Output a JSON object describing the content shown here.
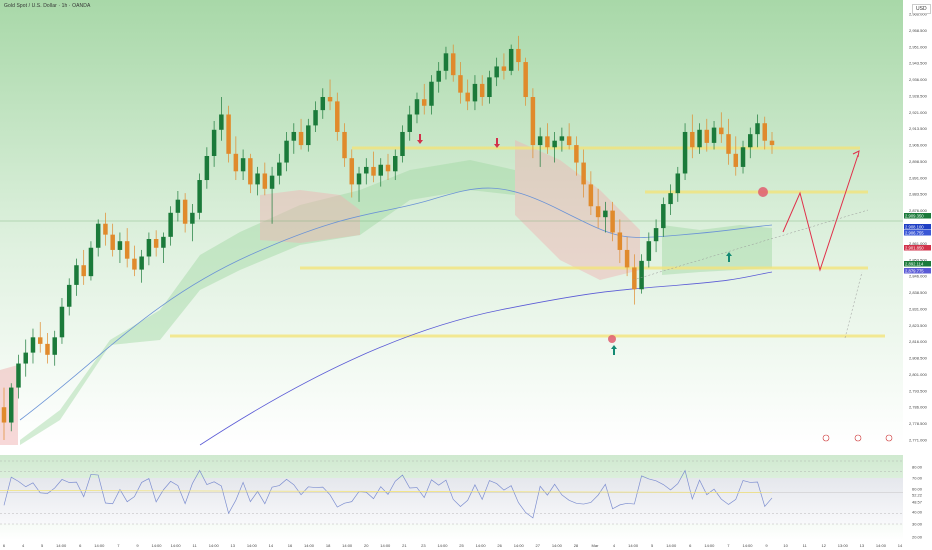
{
  "header": {
    "title": "Gold Spot / U.S. Dollar · 1h · OANDA",
    "currency": "USD"
  },
  "colors": {
    "bull": "#1b7a3a",
    "bear": "#e08a2c",
    "ma_fast": "#6b93d6",
    "ma_slow": "#5b5bd6",
    "level": "#f3e37a",
    "cloud_bull": "#9fd7a2",
    "cloud_bear": "#f0b1b1",
    "arrow_down": "#d1324a",
    "arrow_up": "#148a73",
    "projection": "#e0304a"
  },
  "price_axis": {
    "labels": [
      "2,966.000",
      "2,958.500",
      "2,951.000",
      "2,943.500",
      "2,936.000",
      "2,928.500",
      "2,921.000",
      "2,913.500",
      "2,906.000",
      "2,898.500",
      "2,891.000",
      "2,883.500",
      "2,876.000",
      "2,868.500",
      "2,861.000",
      "2,853.500",
      "2,846.000",
      "2,838.500",
      "2,831.000",
      "2,823.500",
      "2,816.000",
      "2,808.500",
      "2,801.000",
      "2,793.500",
      "2,786.000",
      "2,778.500",
      "2,771.000"
    ],
    "tags": [
      {
        "text": "2,909.350",
        "color": "#1b7a3a"
      },
      {
        "text": "2,908.100",
        "color": "#1f3fc4"
      },
      {
        "text": "2,906.755",
        "color": "#3a57d6"
      },
      {
        "text": "2,901.850",
        "color": "#d1324a"
      },
      {
        "text": "2,892.114",
        "color": "#1b7a3a"
      },
      {
        "text": "2,879.775",
        "color": "#5b5bd6"
      }
    ]
  },
  "time_axis": {
    "labels": [
      "6",
      "4",
      "5",
      "14:00",
      "6",
      "14:00",
      "7",
      "9",
      "14:00",
      "14:00",
      "11",
      "14:00",
      "13",
      "14:00",
      "14",
      "16",
      "14:00",
      "18",
      "14:00",
      "20",
      "14:00",
      "21",
      "23",
      "14:00",
      "25",
      "14:00",
      "26",
      "14:00",
      "27",
      "14:00",
      "28",
      "Mar",
      "4",
      "14:00",
      "5",
      "14:00",
      "6",
      "14:00",
      "7",
      "14:00",
      "9",
      "10",
      "11",
      "12",
      "13:00",
      "13",
      "14:00",
      "14"
    ]
  },
  "rsi": {
    "labels": [
      "80.00",
      "70.00",
      "60.00",
      "52.22",
      "48.57",
      "40.00",
      "30.00",
      "20.00"
    ]
  },
  "chart_data": {
    "type": "candlestick",
    "title": "Gold Spot / U.S. Dollar · 1h · OANDA",
    "ylim": [
      2771,
      2966
    ],
    "series": [
      {
        "values": [
          {
            "o": 2786,
            "h": 2795,
            "l": 2771,
            "c": 2779
          },
          {
            "o": 2779,
            "h": 2797,
            "l": 2775,
            "c": 2795
          },
          {
            "o": 2795,
            "h": 2810,
            "l": 2790,
            "c": 2806
          },
          {
            "o": 2806,
            "h": 2817,
            "l": 2800,
            "c": 2811
          },
          {
            "o": 2811,
            "h": 2822,
            "l": 2806,
            "c": 2818
          },
          {
            "o": 2818,
            "h": 2825,
            "l": 2811,
            "c": 2815
          },
          {
            "o": 2815,
            "h": 2820,
            "l": 2806,
            "c": 2810
          },
          {
            "o": 2810,
            "h": 2821,
            "l": 2805,
            "c": 2818
          },
          {
            "o": 2818,
            "h": 2836,
            "l": 2815,
            "c": 2832
          },
          {
            "o": 2832,
            "h": 2845,
            "l": 2828,
            "c": 2842
          },
          {
            "o": 2842,
            "h": 2854,
            "l": 2837,
            "c": 2851
          },
          {
            "o": 2851,
            "h": 2858,
            "l": 2842,
            "c": 2846
          },
          {
            "o": 2846,
            "h": 2862,
            "l": 2844,
            "c": 2859
          },
          {
            "o": 2859,
            "h": 2872,
            "l": 2855,
            "c": 2870
          },
          {
            "o": 2870,
            "h": 2875,
            "l": 2860,
            "c": 2865
          },
          {
            "o": 2865,
            "h": 2870,
            "l": 2855,
            "c": 2858
          },
          {
            "o": 2858,
            "h": 2866,
            "l": 2852,
            "c": 2862
          },
          {
            "o": 2862,
            "h": 2868,
            "l": 2850,
            "c": 2854
          },
          {
            "o": 2854,
            "h": 2860,
            "l": 2846,
            "c": 2849
          },
          {
            "o": 2849,
            "h": 2858,
            "l": 2843,
            "c": 2855
          },
          {
            "o": 2855,
            "h": 2866,
            "l": 2851,
            "c": 2863
          },
          {
            "o": 2863,
            "h": 2867,
            "l": 2855,
            "c": 2859
          },
          {
            "o": 2859,
            "h": 2866,
            "l": 2852,
            "c": 2864
          },
          {
            "o": 2864,
            "h": 2878,
            "l": 2860,
            "c": 2875
          },
          {
            "o": 2875,
            "h": 2885,
            "l": 2871,
            "c": 2881
          },
          {
            "o": 2881,
            "h": 2884,
            "l": 2866,
            "c": 2870
          },
          {
            "o": 2870,
            "h": 2879,
            "l": 2862,
            "c": 2875
          },
          {
            "o": 2875,
            "h": 2893,
            "l": 2872,
            "c": 2890
          },
          {
            "o": 2890,
            "h": 2905,
            "l": 2886,
            "c": 2901
          },
          {
            "o": 2901,
            "h": 2917,
            "l": 2896,
            "c": 2913
          },
          {
            "o": 2913,
            "h": 2928,
            "l": 2908,
            "c": 2920
          },
          {
            "o": 2920,
            "h": 2924,
            "l": 2898,
            "c": 2902
          },
          {
            "o": 2902,
            "h": 2910,
            "l": 2890,
            "c": 2894
          },
          {
            "o": 2894,
            "h": 2904,
            "l": 2890,
            "c": 2900
          },
          {
            "o": 2900,
            "h": 2902,
            "l": 2884,
            "c": 2888
          },
          {
            "o": 2888,
            "h": 2896,
            "l": 2883,
            "c": 2893
          },
          {
            "o": 2893,
            "h": 2898,
            "l": 2883,
            "c": 2886
          },
          {
            "o": 2886,
            "h": 2896,
            "l": 2870,
            "c": 2892
          },
          {
            "o": 2892,
            "h": 2902,
            "l": 2888,
            "c": 2898
          },
          {
            "o": 2898,
            "h": 2912,
            "l": 2894,
            "c": 2908
          },
          {
            "o": 2908,
            "h": 2916,
            "l": 2902,
            "c": 2912
          },
          {
            "o": 2912,
            "h": 2918,
            "l": 2904,
            "c": 2906
          },
          {
            "o": 2906,
            "h": 2918,
            "l": 2903,
            "c": 2915
          },
          {
            "o": 2915,
            "h": 2926,
            "l": 2912,
            "c": 2922
          },
          {
            "o": 2922,
            "h": 2932,
            "l": 2918,
            "c": 2928
          },
          {
            "o": 2928,
            "h": 2936,
            "l": 2922,
            "c": 2926
          },
          {
            "o": 2926,
            "h": 2930,
            "l": 2908,
            "c": 2912
          },
          {
            "o": 2912,
            "h": 2916,
            "l": 2896,
            "c": 2900
          },
          {
            "o": 2900,
            "h": 2904,
            "l": 2882,
            "c": 2888
          },
          {
            "o": 2888,
            "h": 2896,
            "l": 2880,
            "c": 2893
          },
          {
            "o": 2893,
            "h": 2900,
            "l": 2888,
            "c": 2896
          },
          {
            "o": 2896,
            "h": 2903,
            "l": 2889,
            "c": 2892
          },
          {
            "o": 2892,
            "h": 2900,
            "l": 2887,
            "c": 2897
          },
          {
            "o": 2897,
            "h": 2902,
            "l": 2890,
            "c": 2894
          },
          {
            "o": 2894,
            "h": 2904,
            "l": 2890,
            "c": 2901
          },
          {
            "o": 2901,
            "h": 2915,
            "l": 2898,
            "c": 2912
          },
          {
            "o": 2912,
            "h": 2924,
            "l": 2908,
            "c": 2920
          },
          {
            "o": 2920,
            "h": 2930,
            "l": 2916,
            "c": 2927
          },
          {
            "o": 2927,
            "h": 2934,
            "l": 2920,
            "c": 2924
          },
          {
            "o": 2924,
            "h": 2938,
            "l": 2920,
            "c": 2935
          },
          {
            "o": 2935,
            "h": 2944,
            "l": 2930,
            "c": 2940
          },
          {
            "o": 2940,
            "h": 2951,
            "l": 2936,
            "c": 2948
          },
          {
            "o": 2948,
            "h": 2952,
            "l": 2935,
            "c": 2938
          },
          {
            "o": 2938,
            "h": 2944,
            "l": 2925,
            "c": 2930
          },
          {
            "o": 2930,
            "h": 2936,
            "l": 2922,
            "c": 2926
          },
          {
            "o": 2926,
            "h": 2938,
            "l": 2922,
            "c": 2934
          },
          {
            "o": 2934,
            "h": 2938,
            "l": 2924,
            "c": 2928
          },
          {
            "o": 2928,
            "h": 2940,
            "l": 2925,
            "c": 2937
          },
          {
            "o": 2937,
            "h": 2946,
            "l": 2933,
            "c": 2942
          },
          {
            "o": 2942,
            "h": 2948,
            "l": 2936,
            "c": 2940
          },
          {
            "o": 2940,
            "h": 2952,
            "l": 2938,
            "c": 2950
          },
          {
            "o": 2950,
            "h": 2956,
            "l": 2940,
            "c": 2944
          },
          {
            "o": 2944,
            "h": 2946,
            "l": 2924,
            "c": 2928
          },
          {
            "o": 2928,
            "h": 2932,
            "l": 2900,
            "c": 2906
          },
          {
            "o": 2906,
            "h": 2914,
            "l": 2896,
            "c": 2910
          },
          {
            "o": 2910,
            "h": 2916,
            "l": 2902,
            "c": 2905
          },
          {
            "o": 2905,
            "h": 2912,
            "l": 2898,
            "c": 2908
          },
          {
            "o": 2908,
            "h": 2914,
            "l": 2903,
            "c": 2910
          },
          {
            "o": 2910,
            "h": 2916,
            "l": 2904,
            "c": 2906
          },
          {
            "o": 2906,
            "h": 2910,
            "l": 2892,
            "c": 2898
          },
          {
            "o": 2898,
            "h": 2904,
            "l": 2882,
            "c": 2888
          },
          {
            "o": 2888,
            "h": 2894,
            "l": 2874,
            "c": 2878
          },
          {
            "o": 2878,
            "h": 2886,
            "l": 2868,
            "c": 2873
          },
          {
            "o": 2873,
            "h": 2880,
            "l": 2866,
            "c": 2876
          },
          {
            "o": 2876,
            "h": 2880,
            "l": 2862,
            "c": 2866
          },
          {
            "o": 2866,
            "h": 2872,
            "l": 2852,
            "c": 2858
          },
          {
            "o": 2858,
            "h": 2864,
            "l": 2846,
            "c": 2850
          },
          {
            "o": 2850,
            "h": 2856,
            "l": 2833,
            "c": 2840
          },
          {
            "o": 2840,
            "h": 2856,
            "l": 2838,
            "c": 2853
          },
          {
            "o": 2853,
            "h": 2866,
            "l": 2850,
            "c": 2862
          },
          {
            "o": 2862,
            "h": 2872,
            "l": 2857,
            "c": 2868
          },
          {
            "o": 2868,
            "h": 2882,
            "l": 2864,
            "c": 2879
          },
          {
            "o": 2879,
            "h": 2888,
            "l": 2874,
            "c": 2884
          },
          {
            "o": 2884,
            "h": 2896,
            "l": 2880,
            "c": 2893
          },
          {
            "o": 2893,
            "h": 2916,
            "l": 2890,
            "c": 2912
          },
          {
            "o": 2912,
            "h": 2920,
            "l": 2900,
            "c": 2905
          },
          {
            "o": 2905,
            "h": 2916,
            "l": 2902,
            "c": 2913
          },
          {
            "o": 2913,
            "h": 2918,
            "l": 2903,
            "c": 2907
          },
          {
            "o": 2907,
            "h": 2917,
            "l": 2904,
            "c": 2914
          },
          {
            "o": 2914,
            "h": 2921,
            "l": 2907,
            "c": 2911
          },
          {
            "o": 2911,
            "h": 2918,
            "l": 2897,
            "c": 2902
          },
          {
            "o": 2902,
            "h": 2910,
            "l": 2892,
            "c": 2896
          },
          {
            "o": 2896,
            "h": 2908,
            "l": 2893,
            "c": 2905
          },
          {
            "o": 2905,
            "h": 2914,
            "l": 2900,
            "c": 2911
          },
          {
            "o": 2911,
            "h": 2920,
            "l": 2905,
            "c": 2916
          },
          {
            "o": 2916,
            "h": 2919,
            "l": 2904,
            "c": 2908
          },
          {
            "o": 2908,
            "h": 2912,
            "l": 2902,
            "c": 2906
          }
        ]
      }
    ]
  }
}
